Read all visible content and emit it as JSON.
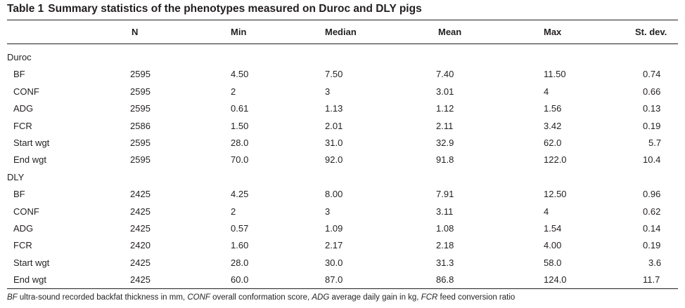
{
  "table": {
    "label": "Table 1",
    "title": "Summary statistics of the phenotypes measured on Duroc and DLY pigs",
    "columns": [
      "N",
      "Min",
      "Median",
      "Mean",
      "Max",
      "St. dev."
    ],
    "groups": [
      {
        "name": "Duroc",
        "rows": [
          {
            "trait": "BF",
            "values": [
              "2595",
              "4.50",
              "7.50",
              "7.40",
              "11.50",
              "0.74"
            ]
          },
          {
            "trait": "CONF",
            "values": [
              "2595",
              "2",
              "3",
              "3.01",
              "4",
              "0.66"
            ]
          },
          {
            "trait": "ADG",
            "values": [
              "2595",
              "0.61",
              "1.13",
              "1.12",
              "1.56",
              "0.13"
            ]
          },
          {
            "trait": "FCR",
            "values": [
              "2586",
              "1.50",
              "2.01",
              "2.11",
              "3.42",
              "0.19"
            ]
          },
          {
            "trait": "Start wgt",
            "values": [
              "2595",
              "28.0",
              "31.0",
              "32.9",
              "62.0",
              "5.7"
            ]
          },
          {
            "trait": "End wgt",
            "values": [
              "2595",
              "70.0",
              "92.0",
              "91.8",
              "122.0",
              "10.4"
            ]
          }
        ]
      },
      {
        "name": "DLY",
        "rows": [
          {
            "trait": "BF",
            "values": [
              "2425",
              "4.25",
              "8.00",
              "7.91",
              "12.50",
              "0.96"
            ]
          },
          {
            "trait": "CONF",
            "values": [
              "2425",
              "2",
              "3",
              "3.11",
              "4",
              "0.62"
            ]
          },
          {
            "trait": "ADG",
            "values": [
              "2425",
              "0.57",
              "1.09",
              "1.08",
              "1.54",
              "0.14"
            ]
          },
          {
            "trait": "FCR",
            "values": [
              "2420",
              "1.60",
              "2.17",
              "2.18",
              "4.00",
              "0.19"
            ]
          },
          {
            "trait": "Start wgt",
            "values": [
              "2425",
              "28.0",
              "30.0",
              "31.3",
              "58.0",
              "3.6"
            ]
          },
          {
            "trait": "End wgt",
            "values": [
              "2425",
              "60.0",
              "87.0",
              "86.8",
              "124.0",
              "11.7"
            ]
          }
        ]
      }
    ],
    "footnote": [
      {
        "abbr": "BF",
        "text": " ultra-sound recorded backfat thickness in mm, "
      },
      {
        "abbr": "CONF",
        "text": " overall conformation score, "
      },
      {
        "abbr": "ADG",
        "text": " average daily gain in kg, "
      },
      {
        "abbr": "FCR",
        "text": " feed conversion ratio"
      }
    ]
  }
}
